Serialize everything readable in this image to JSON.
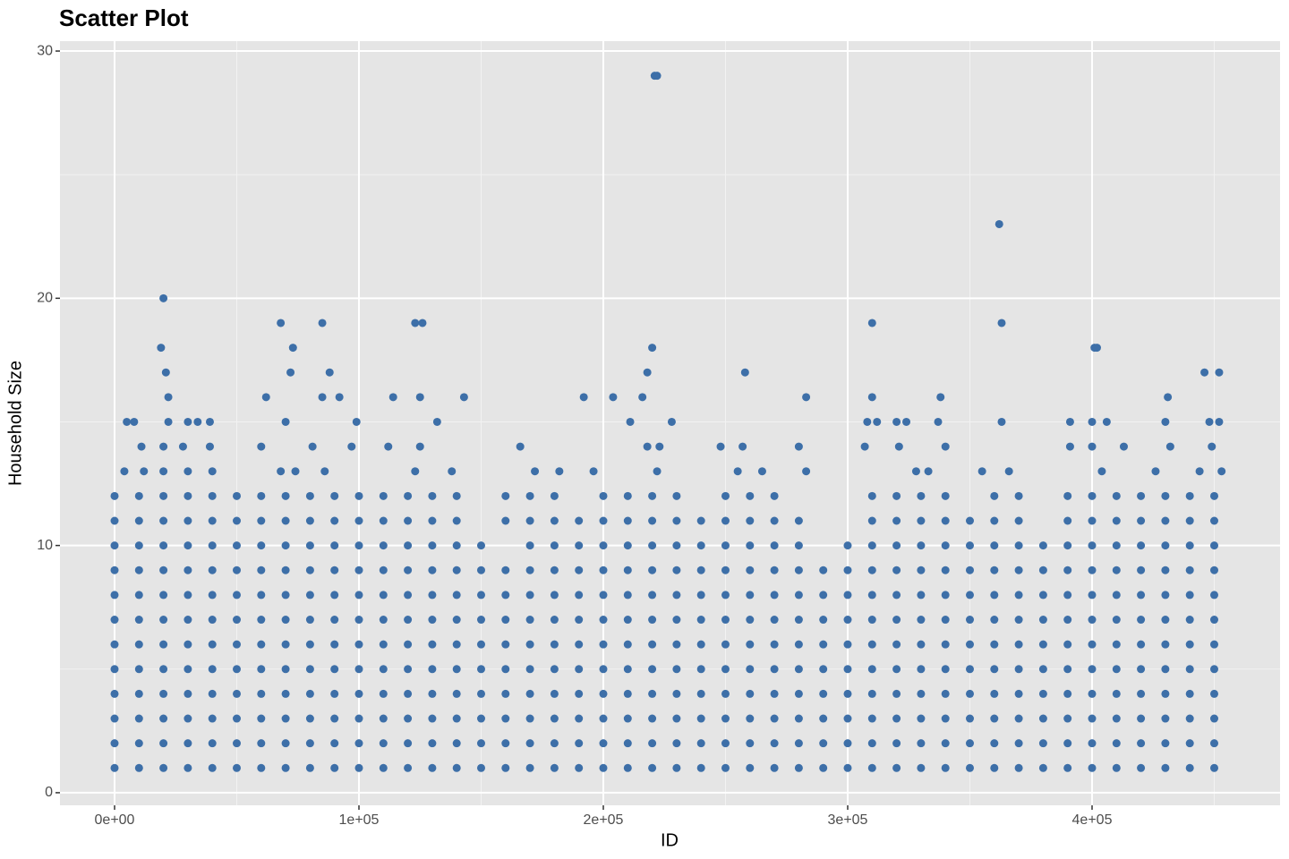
{
  "chart_data": {
    "type": "scatter",
    "title": "Scatter Plot",
    "x_label": "ID",
    "y_label": "Household Size",
    "color": "#3D6FA8",
    "grid": true,
    "xlim": [
      -22344,
      476923
    ],
    "ylim": [
      -0.51,
      30.4
    ],
    "xticks": [
      {
        "value": 0,
        "label": "0e+00"
      },
      {
        "value": 100000,
        "label": "1e+05"
      },
      {
        "value": 200000,
        "label": "2e+05"
      },
      {
        "value": 300000,
        "label": "3e+05"
      },
      {
        "value": 400000,
        "label": "4e+05"
      }
    ],
    "yticks": [
      0,
      10,
      20,
      30
    ],
    "minor_xticks": [
      50000,
      150000,
      250000,
      350000,
      450000
    ],
    "minor_yticks": [
      5,
      15,
      25
    ],
    "x": [
      0,
      10000,
      20000,
      30000,
      40000,
      50000,
      60000,
      70000,
      80000,
      90000,
      100000,
      110000,
      120000,
      130000,
      140000,
      150000,
      160000,
      170000,
      180000,
      190000,
      200000,
      210000,
      220000,
      230000,
      240000,
      250000,
      260000,
      270000,
      280000,
      290000,
      300000,
      310000,
      320000,
      330000,
      340000,
      350000,
      360000,
      370000,
      380000,
      390000,
      400000,
      410000,
      420000,
      430000,
      440000,
      450000
    ],
    "series": [
      {
        "values": [
          1,
          1,
          1,
          1,
          1,
          1,
          1,
          1,
          1,
          1,
          1,
          1,
          1,
          1,
          1,
          1,
          1,
          1,
          1,
          1,
          1,
          1,
          1,
          1,
          1,
          1,
          1,
          1,
          1,
          1,
          1,
          1,
          1,
          1,
          1,
          1,
          1,
          1,
          1,
          1,
          1,
          1,
          1,
          1,
          1,
          1
        ]
      },
      {
        "values": [
          2,
          2,
          2,
          2,
          2,
          2,
          2,
          2,
          2,
          2,
          2,
          2,
          2,
          2,
          2,
          2,
          2,
          2,
          2,
          2,
          2,
          2,
          2,
          2,
          2,
          2,
          2,
          2,
          2,
          2,
          2,
          2,
          2,
          2,
          2,
          2,
          2,
          2,
          2,
          2,
          2,
          2,
          2,
          2,
          2,
          2
        ]
      },
      {
        "values": [
          3,
          3,
          3,
          3,
          3,
          3,
          3,
          3,
          3,
          3,
          3,
          3,
          3,
          3,
          3,
          3,
          3,
          3,
          3,
          3,
          3,
          3,
          3,
          3,
          3,
          3,
          3,
          3,
          3,
          3,
          3,
          3,
          3,
          3,
          3,
          3,
          3,
          3,
          3,
          3,
          3,
          3,
          3,
          3,
          3,
          3
        ]
      },
      {
        "values": [
          4,
          4,
          4,
          4,
          4,
          4,
          4,
          4,
          4,
          4,
          4,
          4,
          4,
          4,
          4,
          4,
          4,
          4,
          4,
          4,
          4,
          4,
          4,
          4,
          4,
          4,
          4,
          4,
          4,
          4,
          4,
          4,
          4,
          4,
          4,
          4,
          4,
          4,
          4,
          4,
          4,
          4,
          4,
          4,
          4,
          4
        ]
      },
      {
        "values": [
          5,
          5,
          5,
          5,
          5,
          5,
          5,
          5,
          5,
          5,
          5,
          5,
          5,
          5,
          5,
          5,
          5,
          5,
          5,
          5,
          5,
          5,
          5,
          5,
          5,
          5,
          5,
          5,
          5,
          5,
          5,
          5,
          5,
          5,
          5,
          5,
          5,
          5,
          5,
          5,
          5,
          5,
          5,
          5,
          5,
          5
        ]
      },
      {
        "values": [
          6,
          6,
          6,
          6,
          6,
          6,
          6,
          6,
          6,
          6,
          6,
          6,
          6,
          6,
          6,
          6,
          6,
          6,
          6,
          6,
          6,
          6,
          6,
          6,
          6,
          6,
          6,
          6,
          6,
          6,
          6,
          6,
          6,
          6,
          6,
          6,
          6,
          6,
          6,
          6,
          6,
          6,
          6,
          6,
          6,
          6
        ]
      },
      {
        "values": [
          7,
          7,
          7,
          7,
          7,
          7,
          7,
          7,
          7,
          7,
          7,
          7,
          7,
          7,
          7,
          7,
          7,
          7,
          7,
          7,
          7,
          7,
          7,
          7,
          7,
          7,
          7,
          7,
          7,
          7,
          7,
          7,
          7,
          7,
          7,
          7,
          7,
          7,
          7,
          7,
          7,
          7,
          7,
          7,
          7,
          7
        ]
      },
      {
        "values": [
          8,
          8,
          8,
          8,
          8,
          8,
          8,
          8,
          8,
          8,
          8,
          8,
          8,
          8,
          8,
          8,
          8,
          8,
          8,
          8,
          8,
          8,
          8,
          8,
          8,
          8,
          8,
          8,
          8,
          8,
          8,
          8,
          8,
          8,
          8,
          8,
          8,
          8,
          8,
          8,
          8,
          8,
          8,
          8,
          8,
          8
        ]
      },
      {
        "values": [
          9,
          9,
          9,
          9,
          9,
          9,
          9,
          9,
          9,
          9,
          9,
          9,
          9,
          9,
          9,
          9,
          9,
          9,
          9,
          9,
          9,
          9,
          9,
          9,
          9,
          9,
          9,
          9,
          9,
          9,
          9,
          9,
          9,
          9,
          9,
          9,
          9,
          9,
          9,
          9,
          9,
          9,
          9,
          9,
          9,
          9
        ]
      },
      {
        "values": [
          10,
          10,
          10,
          10,
          10,
          10,
          10,
          10,
          10,
          10,
          10,
          10,
          10,
          10,
          10,
          10,
          null,
          10,
          10,
          10,
          10,
          10,
          10,
          10,
          10,
          10,
          10,
          10,
          10,
          null,
          10,
          10,
          10,
          10,
          10,
          10,
          10,
          10,
          10,
          10,
          10,
          10,
          10,
          10,
          10,
          10
        ]
      },
      {
        "values": [
          11,
          11,
          11,
          11,
          11,
          11,
          11,
          11,
          11,
          11,
          11,
          11,
          11,
          11,
          11,
          null,
          11,
          11,
          11,
          11,
          11,
          11,
          11,
          11,
          11,
          11,
          11,
          11,
          11,
          null,
          null,
          11,
          11,
          11,
          11,
          11,
          11,
          11,
          null,
          11,
          11,
          11,
          11,
          11,
          11,
          11
        ]
      },
      {
        "values": [
          12,
          12,
          12,
          12,
          12,
          12,
          12,
          12,
          12,
          12,
          12,
          12,
          12,
          12,
          12,
          null,
          12,
          12,
          12,
          null,
          12,
          12,
          12,
          12,
          null,
          12,
          12,
          12,
          null,
          null,
          null,
          12,
          12,
          12,
          12,
          null,
          12,
          12,
          null,
          12,
          12,
          12,
          12,
          12,
          12,
          12
        ]
      }
    ],
    "extra": {
      "x": [
        20000,
        19000,
        21000,
        22000,
        5000,
        8000,
        22000,
        30000,
        34000,
        39000,
        20000,
        11000,
        28000,
        39000,
        4000,
        12000,
        20000,
        30000,
        40000,
        62000,
        68000,
        70000,
        73000,
        72000,
        60000,
        68000,
        74000,
        85000,
        85000,
        88000,
        92000,
        99000,
        81000,
        97000,
        86000,
        123000,
        126000,
        114000,
        125000,
        132000,
        143000,
        112000,
        125000,
        123000,
        138000,
        166000,
        172000,
        182000,
        192000,
        196000,
        204000,
        211000,
        216000,
        218000,
        220000,
        221000,
        222000,
        228000,
        218000,
        223000,
        222000,
        248000,
        258000,
        257000,
        255000,
        265000,
        283000,
        280000,
        283000,
        310000,
        310000,
        308000,
        312000,
        307000,
        320000,
        324000,
        321000,
        338000,
        337000,
        340000,
        333000,
        328000,
        362000,
        363000,
        363000,
        355000,
        366000,
        391000,
        391000,
        401000,
        402000,
        400000,
        406000,
        404000,
        400000,
        413000,
        431000,
        430000,
        432000,
        426000,
        446000,
        452000,
        448000,
        452000,
        449000,
        444000,
        453000
      ],
      "values": [
        20,
        18,
        17,
        16,
        15,
        15,
        15,
        15,
        15,
        15,
        14,
        14,
        14,
        14,
        13,
        13,
        13,
        13,
        13,
        16,
        19,
        15,
        18,
        17,
        14,
        13,
        13,
        19,
        16,
        17,
        16,
        15,
        14,
        14,
        13,
        19,
        19,
        16,
        16,
        15,
        16,
        14,
        14,
        13,
        13,
        14,
        13,
        13,
        16,
        13,
        16,
        15,
        16,
        17,
        18,
        29,
        29,
        15,
        14,
        14,
        13,
        14,
        17,
        14,
        13,
        13,
        16,
        14,
        13,
        19,
        16,
        15,
        15,
        14,
        15,
        15,
        14,
        16,
        15,
        14,
        13,
        13,
        23,
        19,
        15,
        13,
        13,
        15,
        14,
        18,
        18,
        15,
        15,
        13,
        14,
        14,
        16,
        15,
        14,
        13,
        17,
        17,
        15,
        15,
        14,
        13,
        13
      ]
    }
  }
}
